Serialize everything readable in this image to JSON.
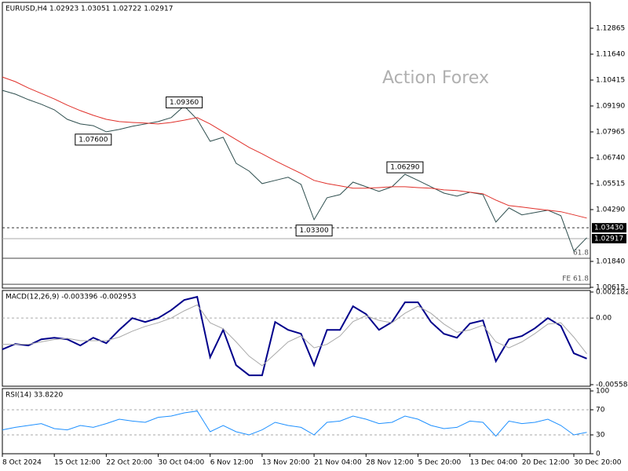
{
  "chart_data": [
    {
      "type": "line",
      "title": "EURUSD,H4  1.02923 1.03051 1.02722 1.02917",
      "watermark": "Action Forex",
      "categories": [
        "8 Oct 2024",
        null,
        null,
        null,
        "15 Oct 12:00",
        null,
        null,
        null,
        "22 Oct 20:00",
        null,
        null,
        null,
        "30 Oct 04:00",
        null,
        null,
        null,
        "6 Nov 12:00",
        null,
        null,
        null,
        "13 Nov 20:00",
        null,
        null,
        null,
        "21 Nov 04:00",
        null,
        null,
        null,
        "28 Nov 12:00",
        null,
        null,
        null,
        "5 Dec 20:00",
        null,
        null,
        null,
        "13 Dec 04:00",
        null,
        null,
        null,
        "20 Dec 12:00",
        null,
        null,
        null,
        "30 Dec 20:00",
        null
      ],
      "series": [
        {
          "color": "#2f4f4f",
          "values": [
            1.0993,
            1.0975,
            1.0949,
            1.0927,
            1.0901,
            1.0856,
            1.0834,
            1.0826,
            1.0797,
            1.0808,
            1.0823,
            1.0834,
            1.0845,
            1.0864,
            1.0919,
            1.0856,
            1.0752,
            1.0771,
            1.0648,
            1.0611,
            1.0552,
            1.0567,
            1.0582,
            1.0548,
            1.0381,
            1.0485,
            1.05,
            1.0559,
            1.0537,
            1.0515,
            1.0537,
            1.0596,
            1.0567,
            1.0537,
            1.0507,
            1.0493,
            1.0511,
            1.05,
            1.037,
            1.0437,
            1.0404,
            1.0415,
            1.0426,
            1.04,
            1.0233,
            1.0296
          ]
        },
        {
          "color": "#e0302a",
          "values": [
            1.1056,
            1.1034,
            1.1004,
            1.0978,
            1.0952,
            1.0923,
            1.0897,
            1.0875,
            1.0856,
            1.0845,
            1.0841,
            1.0838,
            1.0834,
            1.0841,
            1.0852,
            1.0864,
            1.0834,
            1.0797,
            1.076,
            1.0723,
            1.0693,
            1.066,
            1.063,
            1.06,
            1.0567,
            1.0552,
            1.0541,
            1.053,
            1.053,
            1.0533,
            1.0537,
            1.0537,
            1.0533,
            1.053,
            1.0522,
            1.0519,
            1.0511,
            1.0504,
            1.0474,
            1.0448,
            1.0441,
            1.0433,
            1.0426,
            1.0419,
            1.0404,
            1.0389
          ]
        }
      ],
      "ylim": [
        1.00578,
        1.1409
      ],
      "yticks": [
        {
          "value": 1.12865,
          "label": "1.12865"
        },
        {
          "value": 1.1164,
          "label": "1.11640"
        },
        {
          "value": 1.10415,
          "label": "1.10415"
        },
        {
          "value": 1.0919,
          "label": "1.09190"
        },
        {
          "value": 1.07965,
          "label": "1.07965"
        },
        {
          "value": 1.0674,
          "label": "1.06740"
        },
        {
          "value": 1.05515,
          "label": "1.05515"
        },
        {
          "value": 1.0429,
          "label": "1.04290"
        },
        {
          "value": 1.0184,
          "label": "1.01840"
        },
        {
          "value": 1.00615,
          "label": "1.00615"
        }
      ],
      "annotations": [
        {
          "x": 14,
          "value": 1.0936,
          "label": "1.09360"
        },
        {
          "x": 7,
          "value": 1.076,
          "label": "1.07600"
        },
        {
          "x": 24,
          "value": 1.033,
          "label": "1.03300"
        },
        {
          "x": 31,
          "value": 1.0629,
          "label": "1.06290"
        }
      ],
      "price_levels": [
        {
          "value": 1.0343,
          "label": "1.03430"
        },
        {
          "value": 1.02917,
          "label": "1.02917"
        }
      ],
      "fibo_levels": [
        {
          "value": 1.0199,
          "label": "61.8"
        },
        {
          "value": 1.0076,
          "label": "FE 61.8"
        }
      ]
    },
    {
      "type": "line",
      "title": "MACD(12,26,9) -0.003396 -0.002953",
      "series": [
        {
          "color": "#00008b",
          "values": [
            -0.00263,
            -0.00217,
            -0.0023,
            -0.00178,
            -0.00165,
            -0.00178,
            -0.0023,
            -0.00165,
            -0.00211,
            -0.00099,
            0.0,
            -0.00033,
            0.0,
            0.00066,
            0.00151,
            0.00178,
            -0.00329,
            -0.00099,
            -0.00395,
            -0.0048,
            -0.0048,
            -0.00033,
            -0.00099,
            -0.00132,
            -0.00395,
            -0.00099,
            -0.00099,
            0.00099,
            0.00033,
            -0.00099,
            -0.00033,
            0.00132,
            0.00132,
            -0.00033,
            -0.00132,
            -0.00165,
            -0.00046,
            -0.0002,
            -0.00362,
            -0.00178,
            -0.00151,
            -0.00086,
            0.0,
            -0.00066,
            -0.00296,
            -0.0034
          ]
        },
        {
          "color": "#a9a9a9",
          "values": [
            -0.0022,
            -0.0022,
            -0.0022,
            -0.002,
            -0.0018,
            -0.0017,
            -0.0019,
            -0.0019,
            -0.0019,
            -0.0016,
            -0.0011,
            -0.0007,
            -0.0004,
            0.0,
            0.0006,
            0.0011,
            -0.0004,
            -0.0009,
            -0.002,
            -0.0032,
            -0.004,
            -0.003,
            -0.002,
            -0.0015,
            -0.0025,
            -0.0022,
            -0.0015,
            -0.0003,
            0.0002,
            -0.0002,
            -0.0004,
            0.0004,
            0.001,
            0.0004,
            -0.0005,
            -0.0012,
            -0.001,
            -0.0006,
            -0.002,
            -0.0025,
            -0.002,
            -0.0013,
            -0.0005,
            -0.0004,
            -0.0016,
            -0.003
          ]
        }
      ],
      "ylim": [
        -0.005584,
        0.002182
      ],
      "yticks": [
        0.002182,
        {
          "value": 0,
          "label": "0.00"
        },
        -0.005584
      ],
      "levels": [
        0
      ]
    },
    {
      "type": "line",
      "title": "RSI(14) 33.8220",
      "series": [
        {
          "color": "#1e90ff",
          "values": [
            38,
            42,
            45,
            48,
            40,
            38,
            45,
            42,
            48,
            55,
            52,
            50,
            58,
            60,
            65,
            68,
            35,
            45,
            35,
            30,
            38,
            50,
            45,
            42,
            30,
            50,
            52,
            60,
            55,
            48,
            50,
            60,
            55,
            45,
            40,
            42,
            52,
            50,
            28,
            52,
            48,
            50,
            55,
            45,
            30,
            34
          ]
        }
      ],
      "ylim": [
        0,
        100
      ],
      "yticks": [
        100,
        70,
        30,
        0
      ],
      "levels": [
        70,
        30
      ]
    }
  ]
}
